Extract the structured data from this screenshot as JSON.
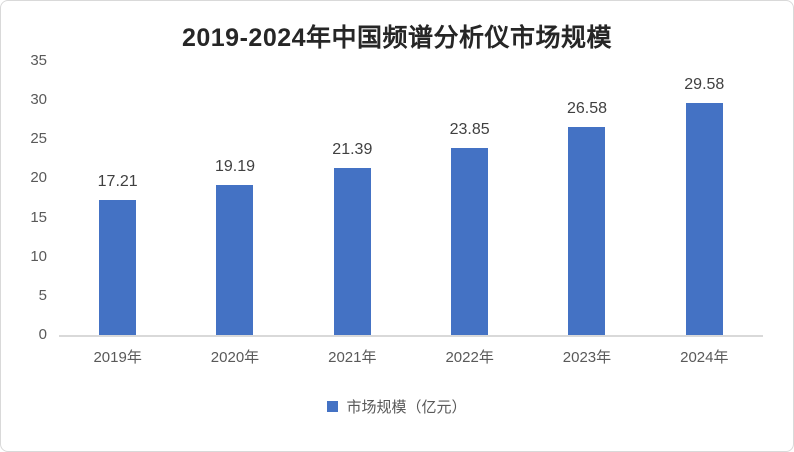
{
  "chart_data": {
    "type": "bar",
    "title": "2019-2024年中国频谱分析仪市场规模",
    "categories": [
      "2019年",
      "2020年",
      "2021年",
      "2022年",
      "2023年",
      "2024年"
    ],
    "values": [
      17.21,
      19.19,
      21.39,
      23.85,
      26.58,
      29.58
    ],
    "value_labels": [
      "17.21",
      "19.19",
      "21.39",
      "23.85",
      "26.58",
      "29.58"
    ],
    "legend": "市场规模（亿元）",
    "xlabel": "",
    "ylabel": "",
    "ylim": [
      0,
      35
    ],
    "yticks": [
      0,
      5,
      10,
      15,
      20,
      25,
      30,
      35
    ],
    "grid": false,
    "legend_position": "bottom"
  },
  "colors": {
    "bar": "#4472C4",
    "title_text": "#262626",
    "axis_text": "#595959",
    "value_label_text": "#404040",
    "axis_line": "#d9d9d9",
    "chart_border": "#d9d9d9",
    "background": "#ffffff"
  }
}
